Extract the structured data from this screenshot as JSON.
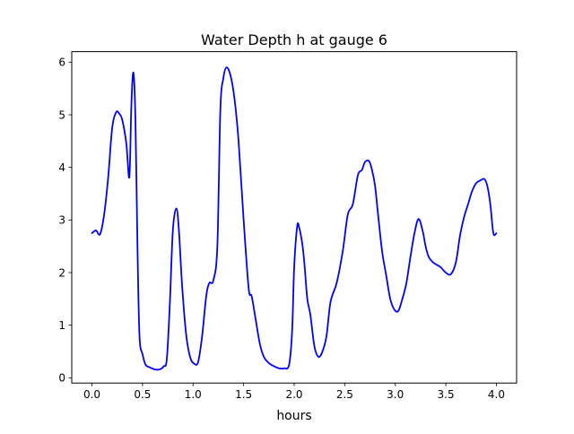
{
  "chart_data": {
    "type": "line",
    "title": "Water Depth h at gauge 6",
    "xlabel": "hours",
    "ylabel": "",
    "xlim": [
      -0.2,
      4.2
    ],
    "ylim": [
      -0.1,
      6.2
    ],
    "xticks": [
      0.0,
      0.5,
      1.0,
      1.5,
      2.0,
      2.5,
      3.0,
      3.5,
      4.0
    ],
    "xtick_labels": [
      "0.0",
      "0.5",
      "1.0",
      "1.5",
      "2.0",
      "2.5",
      "3.0",
      "3.5",
      "4.0"
    ],
    "yticks": [
      0,
      1,
      2,
      3,
      4,
      5,
      6
    ],
    "ytick_labels": [
      "0",
      "1",
      "2",
      "3",
      "4",
      "5",
      "6"
    ],
    "grid": false,
    "series": [
      {
        "color": "#0000ff",
        "x": [
          0.0,
          0.04,
          0.08,
          0.12,
          0.16,
          0.2,
          0.24,
          0.27,
          0.3,
          0.34,
          0.37,
          0.39,
          0.41,
          0.43,
          0.45,
          0.47,
          0.5,
          0.53,
          0.57,
          0.62,
          0.67,
          0.71,
          0.74,
          0.77,
          0.8,
          0.835,
          0.86,
          0.89,
          0.93,
          0.97,
          1.01,
          1.05,
          1.09,
          1.13,
          1.16,
          1.2,
          1.24,
          1.27,
          1.3,
          1.33,
          1.37,
          1.41,
          1.45,
          1.5,
          1.55,
          1.58,
          1.62,
          1.66,
          1.7,
          1.75,
          1.8,
          1.85,
          1.9,
          1.95,
          1.98,
          2.0,
          2.03,
          2.05,
          2.08,
          2.1,
          2.13,
          2.16,
          2.2,
          2.24,
          2.28,
          2.32,
          2.36,
          2.42,
          2.48,
          2.53,
          2.58,
          2.63,
          2.67,
          2.7,
          2.74,
          2.77,
          2.8,
          2.83,
          2.87,
          2.91,
          2.95,
          2.99,
          3.03,
          3.07,
          3.11,
          3.15,
          3.19,
          3.23,
          3.27,
          3.3,
          3.33,
          3.37,
          3.41,
          3.45,
          3.5,
          3.55,
          3.6,
          3.64,
          3.68,
          3.72,
          3.76,
          3.8,
          3.84,
          3.88,
          3.91,
          3.94,
          3.97,
          4.0
        ],
        "y": [
          2.75,
          2.8,
          2.73,
          3.1,
          3.8,
          4.75,
          5.05,
          5.02,
          4.9,
          4.45,
          3.82,
          5.2,
          5.8,
          4.9,
          2.5,
          0.8,
          0.45,
          0.25,
          0.2,
          0.16,
          0.16,
          0.22,
          0.35,
          1.4,
          2.8,
          3.22,
          2.8,
          1.8,
          0.85,
          0.4,
          0.27,
          0.3,
          0.8,
          1.55,
          1.8,
          1.85,
          2.5,
          5.1,
          5.7,
          5.9,
          5.75,
          5.3,
          4.5,
          3.0,
          1.7,
          1.55,
          1.1,
          0.65,
          0.4,
          0.28,
          0.22,
          0.18,
          0.18,
          0.25,
          0.9,
          2.1,
          2.88,
          2.85,
          2.55,
          2.2,
          1.5,
          1.2,
          0.6,
          0.4,
          0.5,
          0.8,
          1.45,
          1.8,
          2.4,
          3.1,
          3.3,
          3.85,
          3.95,
          4.1,
          4.12,
          3.95,
          3.65,
          3.1,
          2.4,
          1.95,
          1.5,
          1.3,
          1.27,
          1.5,
          1.8,
          2.3,
          2.75,
          3.02,
          2.8,
          2.5,
          2.3,
          2.2,
          2.15,
          2.1,
          2.0,
          1.97,
          2.2,
          2.7,
          3.05,
          3.3,
          3.55,
          3.7,
          3.75,
          3.78,
          3.65,
          3.3,
          2.75,
          2.75
        ]
      }
    ]
  }
}
